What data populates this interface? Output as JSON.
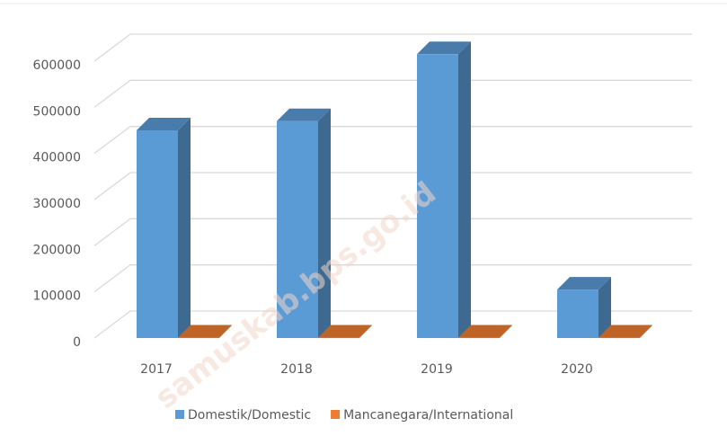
{
  "chart_data": {
    "type": "bar3d",
    "categories": [
      "2017",
      "2018",
      "2019",
      "2020"
    ],
    "series": [
      {
        "name": "Domestik/Domestic",
        "color": "#5b9bd5",
        "values": [
          450000,
          470000,
          615000,
          105000
        ]
      },
      {
        "name": "Mancanegara/International",
        "color": "#ed7d31",
        "values": [
          1000,
          1000,
          1000,
          1000
        ]
      }
    ],
    "ylim": [
      0,
      600000
    ],
    "yticks": [
      0,
      100000,
      200000,
      300000,
      400000,
      500000,
      600000
    ],
    "grid": true,
    "legend": "bottom",
    "watermark": "samuskab.bps.go.id"
  }
}
